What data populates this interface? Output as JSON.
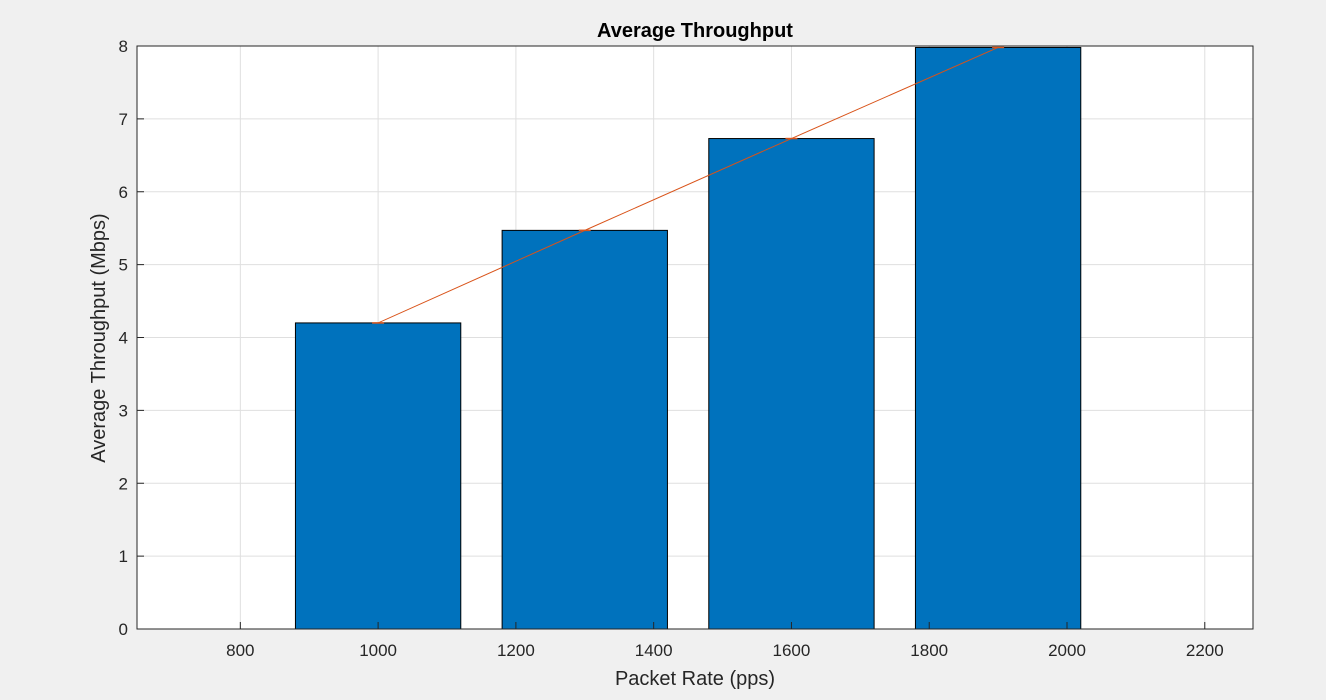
{
  "colors": {
    "figure_background": "#f0f0f0",
    "axes_background": "#ffffff",
    "bar_fill": "#0072bd",
    "line": "#d95319",
    "grid": "#dfdfdf",
    "axis": "#262626"
  },
  "chart_data": {
    "type": "bar",
    "title": "Average Throughput",
    "xlabel": "Packet Rate (pps)",
    "ylabel": "Average Throughput (Mbps)",
    "x": [
      1000,
      1300,
      1600,
      1900
    ],
    "values": [
      4.2,
      5.47,
      6.73,
      7.98
    ],
    "xlim": [
      650,
      2270
    ],
    "ylim": [
      0,
      8
    ],
    "bar_width": 240,
    "xticks": [
      800,
      1000,
      1200,
      1400,
      1600,
      1800,
      2000,
      2200
    ],
    "yticks": [
      0,
      1,
      2,
      3,
      4,
      5,
      6,
      7,
      8
    ],
    "overlay_line": {
      "type": "line",
      "x": [
        1000,
        1300,
        1600,
        1900
      ],
      "y": [
        4.2,
        5.47,
        6.73,
        7.98
      ]
    },
    "grid": true,
    "legend": "none"
  }
}
